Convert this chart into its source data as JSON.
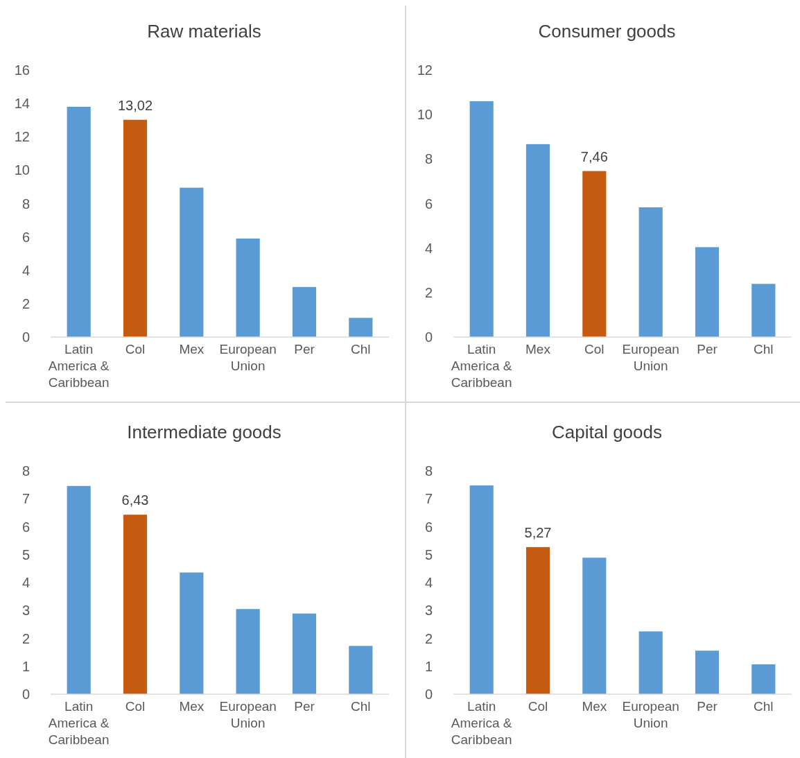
{
  "chart_data": [
    {
      "type": "bar",
      "title": "Raw materials",
      "categories": [
        "Latin America & Caribbean",
        "Col",
        "Mex",
        "European Union",
        "Per",
        "Chl"
      ],
      "values": [
        13.8,
        13.02,
        8.95,
        5.9,
        3.0,
        1.15
      ],
      "colors": [
        "#5b9bd5",
        "#c55a11",
        "#5b9bd5",
        "#5b9bd5",
        "#5b9bd5",
        "#5b9bd5"
      ],
      "value_labels": [
        null,
        "13,02",
        null,
        null,
        null,
        null
      ],
      "ylim": [
        0,
        16
      ],
      "yticks": [
        0,
        2,
        4,
        6,
        8,
        10,
        12,
        14,
        16
      ],
      "grid": false
    },
    {
      "type": "bar",
      "title": "Consumer goods",
      "categories": [
        "Latin America & Caribbean",
        "Mex",
        "Col",
        "European Union",
        "Per",
        "Chl"
      ],
      "values": [
        10.6,
        8.67,
        7.46,
        5.83,
        4.04,
        2.39
      ],
      "colors": [
        "#5b9bd5",
        "#5b9bd5",
        "#c55a11",
        "#5b9bd5",
        "#5b9bd5",
        "#5b9bd5"
      ],
      "value_labels": [
        null,
        null,
        "7,46",
        null,
        null,
        null
      ],
      "ylim": [
        0,
        12
      ],
      "yticks": [
        0,
        2,
        4,
        6,
        8,
        10,
        12
      ],
      "grid": false
    },
    {
      "type": "bar",
      "title": "Intermediate goods",
      "categories": [
        "Latin America & Caribbean",
        "Col",
        "Mex",
        "European Union",
        "Per",
        "Chl"
      ],
      "values": [
        7.46,
        6.43,
        4.36,
        3.05,
        2.89,
        1.73
      ],
      "colors": [
        "#5b9bd5",
        "#c55a11",
        "#5b9bd5",
        "#5b9bd5",
        "#5b9bd5",
        "#5b9bd5"
      ],
      "value_labels": [
        null,
        "6,43",
        null,
        null,
        null,
        null
      ],
      "ylim": [
        0,
        8
      ],
      "yticks": [
        0,
        1,
        2,
        3,
        4,
        5,
        6,
        7,
        8
      ],
      "grid": false
    },
    {
      "type": "bar",
      "title": "Capital goods",
      "categories": [
        "Latin America & Caribbean",
        "Col",
        "Mex",
        "European Union",
        "Per",
        "Chl"
      ],
      "values": [
        7.48,
        5.27,
        4.89,
        2.25,
        1.56,
        1.07
      ],
      "colors": [
        "#5b9bd5",
        "#c55a11",
        "#5b9bd5",
        "#5b9bd5",
        "#5b9bd5",
        "#5b9bd5"
      ],
      "value_labels": [
        null,
        "5,27",
        null,
        null,
        null,
        null
      ],
      "ylim": [
        0,
        8
      ],
      "yticks": [
        0,
        1,
        2,
        3,
        4,
        5,
        6,
        7,
        8
      ],
      "grid": false
    }
  ]
}
